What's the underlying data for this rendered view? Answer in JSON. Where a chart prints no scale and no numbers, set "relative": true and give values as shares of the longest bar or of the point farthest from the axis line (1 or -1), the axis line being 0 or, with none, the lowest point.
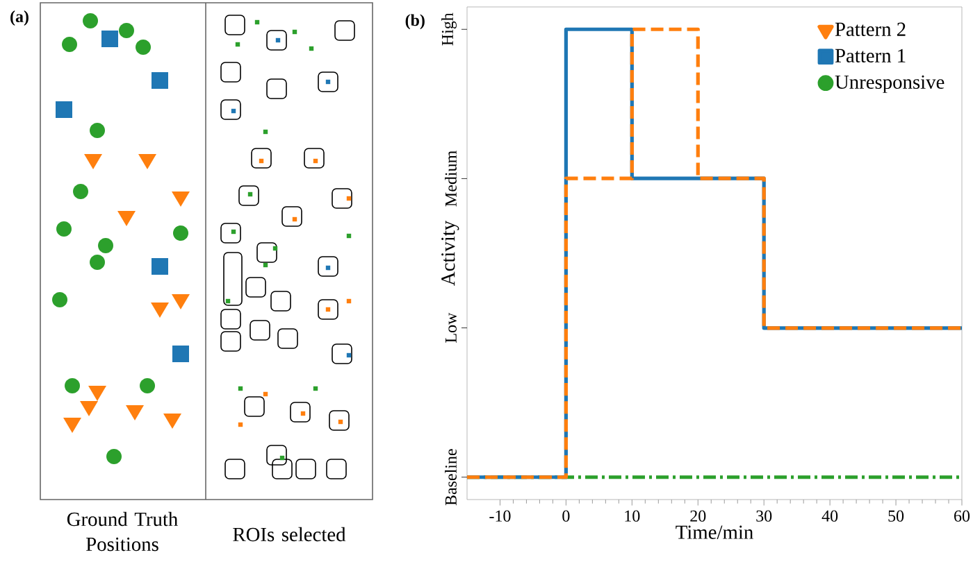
{
  "chart_data": [
    {
      "type": "other",
      "title": "(a)",
      "annotations": [
        "Ground Truth Positions",
        "ROIs selected"
      ]
    },
    {
      "type": "step",
      "title": "(b)",
      "xlabel": "Time/min",
      "ylabel": "Activity",
      "xlim": [
        -15,
        60
      ],
      "xticks": [
        -10,
        0,
        10,
        20,
        30,
        40,
        50,
        60
      ],
      "relative": true,
      "annotations": [
        "Baseline",
        "Low",
        "Medium",
        "High"
      ],
      "legend": "top right",
      "series": [
        {
          "name": "Pattern 2",
          "color": "#ff7f0e",
          "line_style": "dashed",
          "x": [
            -15,
            0,
            10,
            20,
            30,
            60
          ],
          "values": [
            0,
            0.667,
            1,
            0.667,
            0.333,
            0.333
          ]
        },
        {
          "name": "Pattern 1",
          "color": "#1f77b4",
          "line_style": "solid",
          "x": [
            -15,
            0,
            10,
            30,
            60
          ],
          "values": [
            0,
            1,
            0.667,
            0.333,
            0.333
          ]
        },
        {
          "name": "Unresponsive",
          "color": "#2ca02c",
          "line_style": "dashdot",
          "x": [
            -15,
            60
          ],
          "values": [
            0,
            0
          ]
        }
      ]
    }
  ]
}
